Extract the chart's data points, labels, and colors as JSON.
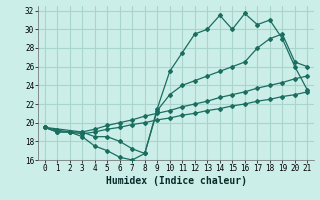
{
  "xlabel": "Humidex (Indice chaleur)",
  "background_color": "#cceee8",
  "grid_color": "#aad4ce",
  "line_color": "#1a6e60",
  "xlim_min": -0.5,
  "xlim_max": 21.5,
  "ylim_min": 16,
  "ylim_max": 32.5,
  "xticks": [
    0,
    1,
    2,
    3,
    4,
    5,
    6,
    7,
    8,
    9,
    10,
    11,
    12,
    13,
    14,
    15,
    16,
    17,
    18,
    19,
    20,
    21
  ],
  "yticks": [
    16,
    18,
    20,
    22,
    24,
    26,
    28,
    30,
    32
  ],
  "series1_x": [
    0,
    1,
    2,
    3,
    4,
    5,
    6,
    7,
    8,
    9,
    10,
    11,
    12,
    13,
    14,
    15,
    16,
    17,
    18,
    19,
    20,
    21
  ],
  "series1_y": [
    19.5,
    19.0,
    19.0,
    18.5,
    17.5,
    17.0,
    16.3,
    16.0,
    16.7,
    21.5,
    25.5,
    27.5,
    29.5,
    30.0,
    31.5,
    30.0,
    31.7,
    30.5,
    31.0,
    29.0,
    26.0,
    23.5
  ],
  "series2_x": [
    0,
    3,
    4,
    5,
    6,
    7,
    8,
    9,
    10,
    11,
    12,
    13,
    14,
    15,
    16,
    17,
    18,
    19,
    20,
    21
  ],
  "series2_y": [
    19.5,
    19.0,
    18.5,
    18.5,
    18.0,
    17.2,
    16.7,
    21.3,
    23.0,
    24.0,
    24.5,
    25.0,
    25.5,
    26.0,
    26.5,
    28.0,
    29.0,
    29.5,
    26.5,
    26.0
  ],
  "series3_x": [
    0,
    1,
    2,
    3,
    4,
    5,
    6,
    7,
    8,
    9,
    10,
    11,
    12,
    13,
    14,
    15,
    16,
    17,
    18,
    19,
    20,
    21
  ],
  "series3_y": [
    19.5,
    19.0,
    19.0,
    19.0,
    19.3,
    19.7,
    20.0,
    20.3,
    20.7,
    21.0,
    21.3,
    21.7,
    22.0,
    22.3,
    22.7,
    23.0,
    23.3,
    23.7,
    24.0,
    24.3,
    24.7,
    25.0
  ],
  "series4_x": [
    0,
    1,
    2,
    3,
    4,
    5,
    6,
    7,
    8,
    9,
    10,
    11,
    12,
    13,
    14,
    15,
    16,
    17,
    18,
    19,
    20,
    21
  ],
  "series4_y": [
    19.5,
    19.2,
    19.0,
    18.8,
    19.0,
    19.3,
    19.5,
    19.8,
    20.0,
    20.3,
    20.5,
    20.8,
    21.0,
    21.3,
    21.5,
    21.8,
    22.0,
    22.3,
    22.5,
    22.8,
    23.0,
    23.3
  ]
}
